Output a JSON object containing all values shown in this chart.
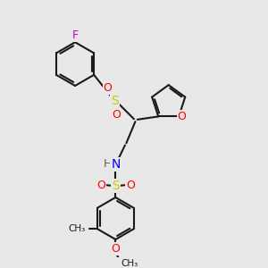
{
  "background_color": "#e8e8e8",
  "line_color": "#1a1a1a",
  "bond_width": 1.5,
  "figsize": [
    3.0,
    3.0
  ],
  "dpi": 100,
  "colors": {
    "F": "#cc00cc",
    "O": "#ff0000",
    "S": "#cccc00",
    "N": "#0000ff",
    "H": "#606060",
    "C": "#1a1a1a"
  },
  "xlim": [
    0,
    10
  ],
  "ylim": [
    0,
    10
  ]
}
